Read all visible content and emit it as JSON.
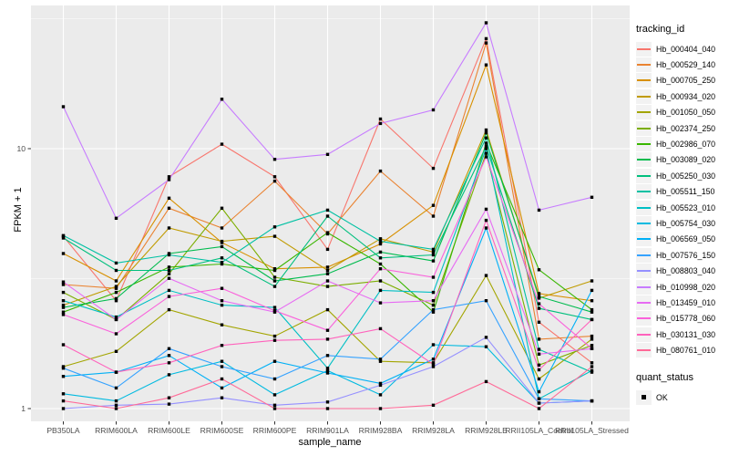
{
  "chart_data": {
    "type": "line",
    "title": "",
    "xlabel": "sample_name",
    "ylabel": "FPKM + 1",
    "y_scale": "log10",
    "y_tick_labels": [
      "1",
      "10"
    ],
    "y_tick_values": [
      1,
      10
    ],
    "y_minor_breaks": [
      3.1623,
      31.6228
    ],
    "ylim": [
      0.89,
      35
    ],
    "grid": true,
    "panel_bg": "#EBEBEB",
    "gridline_color": "#FFFFFF",
    "tick_label_color": "#4D4D4D",
    "point_color": "#000000",
    "point_shape": "square",
    "legend": {
      "title": "tracking_id",
      "position": "right"
    },
    "legend2": {
      "title": "quant_status",
      "items": [
        "OK"
      ],
      "marker": "black-square"
    },
    "categories": [
      "PB350LA",
      "RRIM600LA",
      "RRIM600LE",
      "RRIM600SE",
      "RRIM600PE",
      "RRIM901LA",
      "RRIM928BA",
      "RRIM928LA",
      "RRIM928LE",
      "RRII105LA_Control",
      "RRII105LA_Stressed"
    ],
    "series": [
      {
        "name": "Hb_000404_040",
        "color": "#F8766D",
        "values": [
          4.6,
          2.6,
          7.8,
          10.4,
          7.8,
          4.1,
          13.0,
          8.4,
          26.5,
          2.15,
          1.5
        ]
      },
      {
        "name": "Hb_000529_140",
        "color": "#EA8331",
        "values": [
          3.0,
          2.9,
          5.9,
          4.95,
          7.5,
          4.7,
          8.2,
          5.5,
          25.5,
          1.85,
          1.9
        ]
      },
      {
        "name": "Hb_000705_250",
        "color": "#D89000",
        "values": [
          3.95,
          3.1,
          6.45,
          4.35,
          3.45,
          3.5,
          4.3,
          6.05,
          21.0,
          2.77,
          2.6
        ]
      },
      {
        "name": "Hb_000934_020",
        "color": "#C09B00",
        "values": [
          2.5,
          2.95,
          4.95,
          4.4,
          4.6,
          3.4,
          4.5,
          4.0,
          11.8,
          2.66,
          3.1
        ]
      },
      {
        "name": "Hb_001050_050",
        "color": "#A3A500",
        "values": [
          1.45,
          1.66,
          2.4,
          2.1,
          1.9,
          2.4,
          1.52,
          1.5,
          3.25,
          1.3,
          1.85
        ]
      },
      {
        "name": "Hb_002374_250",
        "color": "#7CAE00",
        "values": [
          2.8,
          2.2,
          3.3,
          5.9,
          3.2,
          2.95,
          3.1,
          2.5,
          9.6,
          1.47,
          1.75
        ]
      },
      {
        "name": "Hb_002986_070",
        "color": "#39B600",
        "values": [
          2.35,
          2.8,
          3.5,
          3.6,
          3.4,
          4.75,
          3.6,
          2.35,
          10.5,
          3.42,
          2.4
        ]
      },
      {
        "name": "Hb_003089_020",
        "color": "#00BB4E",
        "values": [
          2.45,
          2.65,
          3.95,
          4.2,
          3.1,
          3.3,
          4.0,
          3.7,
          11.5,
          2.7,
          2.35
        ]
      },
      {
        "name": "Hb_005250_030",
        "color": "#00BF7D",
        "values": [
          4.53,
          3.4,
          3.4,
          3.8,
          2.95,
          5.5,
          3.8,
          3.9,
          10.2,
          2.43,
          2.2
        ]
      },
      {
        "name": "Hb_005511_150",
        "color": "#00C1A3",
        "values": [
          4.63,
          3.63,
          3.9,
          3.65,
          5.0,
          5.8,
          4.4,
          4.1,
          11.0,
          1.69,
          1.38
        ]
      },
      {
        "name": "Hb_005523_010",
        "color": "#00BFC4",
        "values": [
          2.6,
          2.25,
          2.85,
          2.5,
          2.45,
          1.43,
          2.85,
          2.8,
          10.0,
          1.09,
          1.4
        ]
      },
      {
        "name": "Hb_005754_030",
        "color": "#00BAE0",
        "values": [
          1.14,
          1.07,
          1.35,
          1.52,
          1.13,
          1.4,
          1.13,
          1.76,
          1.73,
          1.05,
          1.07
        ]
      },
      {
        "name": "Hb_006569_050",
        "color": "#00B0F6",
        "values": [
          1.33,
          1.38,
          1.6,
          1.2,
          1.52,
          1.37,
          1.25,
          1.55,
          4.95,
          1.16,
          2.85
        ]
      },
      {
        "name": "Hb_007576_150",
        "color": "#35A2FF",
        "values": [
          1.43,
          1.2,
          1.7,
          1.45,
          1.3,
          1.6,
          1.55,
          2.4,
          2.6,
          1.09,
          1.07
        ]
      },
      {
        "name": "Hb_008803_040",
        "color": "#9590FF",
        "values": [
          1.0,
          1.03,
          1.04,
          1.1,
          1.03,
          1.06,
          1.23,
          1.45,
          1.88,
          1.05,
          1.07
        ]
      },
      {
        "name": "Hb_010998_020",
        "color": "#C77CFF",
        "values": [
          14.5,
          5.4,
          7.6,
          15.5,
          9.1,
          9.5,
          12.5,
          14.1,
          30.5,
          5.8,
          6.5
        ]
      },
      {
        "name": "Hb_013459_010",
        "color": "#E76BF3",
        "values": [
          3.07,
          2.2,
          3.17,
          2.6,
          2.35,
          3.1,
          2.55,
          2.6,
          5.85,
          1.62,
          1.7
        ]
      },
      {
        "name": "Hb_015778_060",
        "color": "#FA62DB",
        "values": [
          2.3,
          1.94,
          2.7,
          2.9,
          2.38,
          2.0,
          3.45,
          3.2,
          9.3,
          2.53,
          1.7
        ]
      },
      {
        "name": "Hb_030131_030",
        "color": "#FF62BC",
        "values": [
          1.76,
          1.38,
          1.5,
          1.75,
          1.83,
          1.85,
          2.03,
          1.48,
          5.3,
          1.41,
          2.2
        ]
      },
      {
        "name": "Hb_080761_010",
        "color": "#FF6A98",
        "values": [
          1.07,
          1.0,
          1.1,
          1.3,
          1.0,
          1.0,
          1.0,
          1.03,
          1.27,
          1.0,
          1.45
        ]
      }
    ]
  }
}
